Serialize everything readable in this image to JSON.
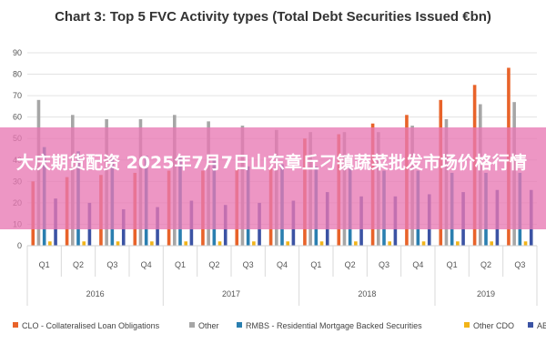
{
  "page": {
    "overlay_text": "大庆期货配资 2025年7月7日山东章丘刁镇蔬菜批发市场价格行情"
  },
  "colors": {
    "CLO": "#e8632a",
    "Other": "#a6a6a6",
    "RMBS": "#2a7fb0",
    "OtherCDO": "#f2b418",
    "ABCP": "#3b53a4"
  },
  "chart_data": {
    "type": "bar",
    "title": "Chart 3: Top 5 FVC Activity types (Total Debt Securities Issued €bn)",
    "xlabel": "",
    "ylabel": "",
    "ylim": [
      0,
      90
    ],
    "yticks": [
      0,
      10,
      20,
      30,
      40,
      50,
      60,
      70,
      80,
      90
    ],
    "grid": true,
    "legend_position": "bottom",
    "categories": [
      "Q1",
      "Q2",
      "Q3",
      "Q4",
      "Q1",
      "Q2",
      "Q3",
      "Q4",
      "Q1",
      "Q2",
      "Q3",
      "Q4",
      "Q1",
      "Q2",
      "Q3"
    ],
    "groups": [
      {
        "label": "2016",
        "start": 0,
        "end": 3
      },
      {
        "label": "2017",
        "start": 4,
        "end": 7
      },
      {
        "label": "2018",
        "start": 8,
        "end": 11
      },
      {
        "label": "2019",
        "start": 12,
        "end": 14
      }
    ],
    "series": [
      {
        "name": "CLO - Collateralised Loan Obligations",
        "color_key": "CLO",
        "values": [
          30,
          32,
          33,
          34,
          35,
          35,
          36,
          36,
          50,
          52,
          57,
          61,
          68,
          75,
          83
        ]
      },
      {
        "name": "Other",
        "color_key": "Other",
        "values": [
          68,
          61,
          59,
          59,
          61,
          58,
          56,
          54,
          53,
          53,
          53,
          56,
          59,
          66,
          67
        ]
      },
      {
        "name": "RMBS - Residential Mortgage Backed Securities",
        "color_key": "RMBS",
        "values": [
          46,
          44,
          41,
          42,
          42,
          40,
          37,
          38,
          37,
          37,
          35,
          35,
          34,
          34,
          34
        ]
      },
      {
        "name": "Other CDO",
        "color_key": "OtherCDO",
        "values": [
          2,
          2,
          2,
          2,
          2,
          2,
          2,
          2,
          2,
          2,
          2,
          2,
          2,
          2,
          2
        ]
      },
      {
        "name": "ABCP",
        "color_key": "ABCP",
        "values": [
          22,
          20,
          17,
          18,
          21,
          19,
          20,
          21,
          25,
          23,
          23,
          24,
          25,
          26,
          26
        ]
      }
    ]
  }
}
